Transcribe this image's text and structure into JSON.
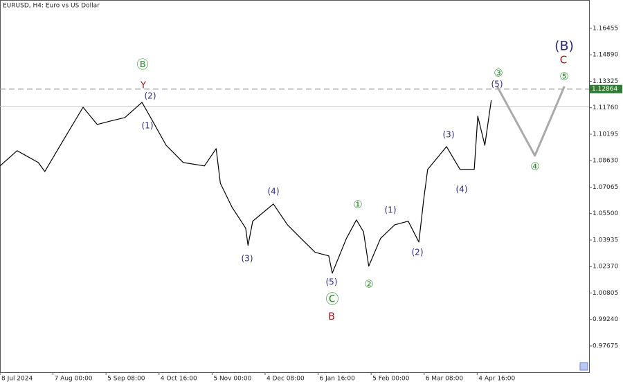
{
  "chart_data": {
    "type": "line",
    "title": "EURUSD, H4:  Euro vs US Dollar",
    "xlim": [
      0,
      100
    ],
    "ylim": [
      0.9612,
      1.1813
    ],
    "xticks": [
      {
        "value": 0,
        "label": "8 Jul 2024"
      },
      {
        "value": 9,
        "label": "7 Aug 00:00"
      },
      {
        "value": 18,
        "label": "5 Sep 08:00"
      },
      {
        "value": 27,
        "label": "4 Oct 16:00"
      },
      {
        "value": 36,
        "label": "5 Nov 00:00"
      },
      {
        "value": 45,
        "label": "4 Dec 08:00"
      },
      {
        "value": 54,
        "label": "6 Jan 16:00"
      },
      {
        "value": 63,
        "label": "5 Feb 00:00"
      },
      {
        "value": 72,
        "label": "6 Mar 08:00"
      },
      {
        "value": 81,
        "label": "4 Apr 16:00"
      }
    ],
    "yticks": [
      0.97675,
      {
        "value": 0.9924,
        "label": "0.99240"
      },
      1.00805,
      {
        "value": 1.0237,
        "label": "1.02370"
      },
      1.03935,
      {
        "value": 1.055,
        "label": "1.05500"
      },
      1.07065,
      {
        "value": 1.0863,
        "label": "1.08630"
      },
      1.10195,
      {
        "value": 1.1176,
        "label": "1.11760"
      },
      1.13325,
      {
        "value": 1.1489,
        "label": "1.14890"
      },
      1.16455
    ],
    "series": [
      {
        "name": "EURUSD",
        "color": "#000000",
        "x": [
          0,
          2.9,
          6.5,
          7.6,
          10.6,
          14.1,
          16.5,
          18.8,
          21.2,
          24.1,
          25.9,
          28.2,
          31.1,
          34.7,
          36.7,
          37.4,
          39.4,
          41.7,
          42.1,
          42.9,
          46.4,
          48.8,
          51.1,
          53.5,
          55.8,
          56.4,
          58.8,
          60.5,
          61.7,
          62.6,
          64.6,
          67.0,
          69.3,
          71.1,
          71.9,
          72.6,
          75.8,
          78.1,
          80.5,
          81.1,
          82.3,
          83.4
        ],
        "values": [
          1.0832,
          1.0922,
          1.0852,
          1.0799,
          1.0975,
          1.1179,
          1.1077,
          1.1098,
          1.1118,
          1.1208,
          1.1098,
          1.0954,
          1.0852,
          1.0832,
          1.0934,
          1.073,
          1.0587,
          1.0464,
          1.0362,
          1.0505,
          1.0607,
          1.0484,
          1.0403,
          1.0321,
          1.03,
          1.0198,
          1.0403,
          1.0513,
          1.0443,
          1.0239,
          1.0403,
          1.0484,
          1.0505,
          1.0382,
          1.0627,
          1.0811,
          1.0946,
          1.0811,
          1.0811,
          1.1126,
          1.0954,
          1.122
        ]
      },
      {
        "name": "Forecast",
        "color": "#aaaaaa",
        "x": [
          84.4,
          90.8,
          95.8
        ],
        "values": [
          1.1302,
          1.0893,
          1.1302
        ]
      }
    ],
    "price_line": 1.12864,
    "bid_line": 1.1184,
    "annotations": [
      {
        "text": "Ⓑ",
        "color": "#2e8b2e"
      },
      {
        "text": "Y",
        "color": "#8b1a1a"
      },
      {
        "text": "(2)",
        "color": "#2a2a7a"
      },
      {
        "text": "(1)",
        "color": "#2a2a7a"
      },
      {
        "text": "(4)",
        "color": "#2a2a7a"
      },
      {
        "text": "(3)",
        "color": "#2a2a7a"
      },
      {
        "text": "①",
        "color": "#2e8b2e"
      },
      {
        "text": "(1)",
        "color": "#2a2a7a"
      },
      {
        "text": "(5)",
        "color": "#2a2a7a"
      },
      {
        "text": "②",
        "color": "#2e8b2e"
      },
      {
        "text": "Ⓒ",
        "color": "#2e8b2e"
      },
      {
        "text": "B",
        "color": "#8b1a1a"
      },
      {
        "text": "(2)",
        "color": "#2a2a7a"
      },
      {
        "text": "(3)",
        "color": "#2a2a7a"
      },
      {
        "text": "(4)",
        "color": "#2a2a7a"
      },
      {
        "text": "③",
        "color": "#2e8b2e"
      },
      {
        "text": "(5)",
        "color": "#2a2a7a"
      },
      {
        "text": "④",
        "color": "#2e8b2e"
      },
      {
        "text": "(B)",
        "color": "#2a2a7a"
      },
      {
        "text": "C",
        "color": "#8b1a1a"
      },
      {
        "text": "⑤",
        "color": "#2e8b2e"
      }
    ]
  }
}
